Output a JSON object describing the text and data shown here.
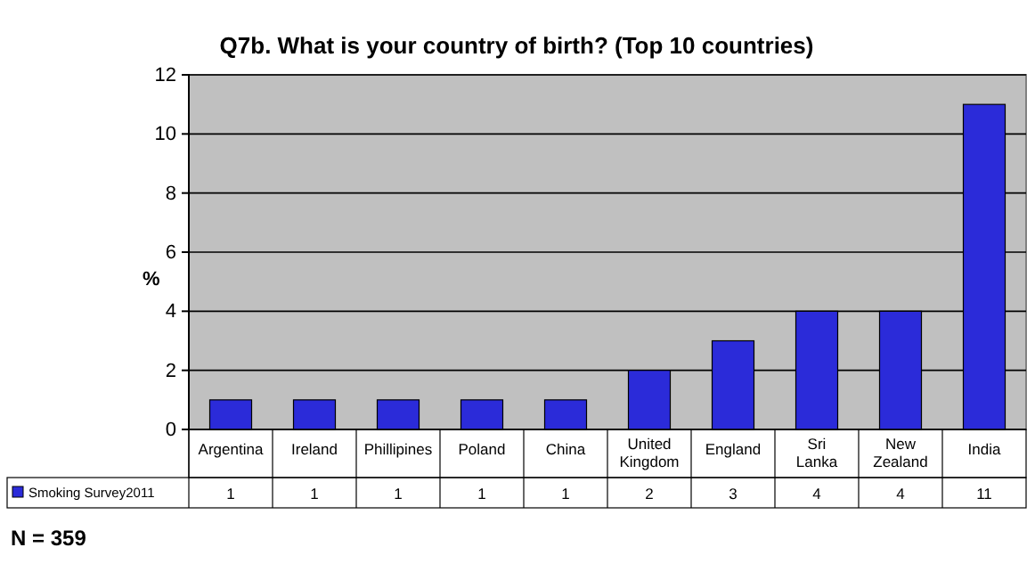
{
  "chart_data": {
    "type": "bar",
    "title": "Q7b. What is your country of birth? (Top 10 countries)",
    "ylabel": "%",
    "categories": [
      "Argentina",
      "Ireland",
      "Phillipines",
      "Poland",
      "China",
      "United Kingdom",
      "England",
      "Sri Lanka",
      "New Zealand",
      "India"
    ],
    "series": [
      {
        "name": "Smoking Survey2011",
        "color": "#2b2bd9",
        "values": [
          1,
          1,
          1,
          1,
          1,
          2,
          3,
          4,
          4,
          11
        ]
      }
    ],
    "ylim": [
      0,
      12
    ],
    "yticks": [
      0,
      2,
      4,
      6,
      8,
      10,
      12
    ],
    "grid": "y",
    "legend": "bottom",
    "data_labels": true,
    "annotations": [
      "N = 359"
    ]
  }
}
